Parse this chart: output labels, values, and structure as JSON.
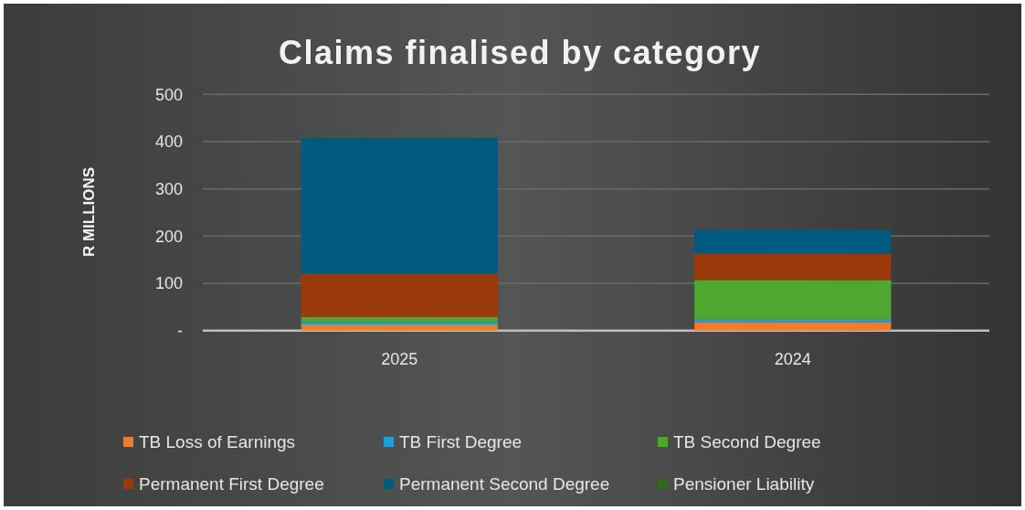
{
  "chart_data": {
    "type": "bar",
    "title": "Claims finalised  by category",
    "ylabel": "R MILLIONS",
    "categories": [
      "2025",
      "2024"
    ],
    "stacked": true,
    "ylim": [
      0,
      500
    ],
    "yticks": [
      {
        "value": 0,
        "label": "-"
      },
      100,
      200,
      300,
      400,
      500
    ],
    "grid": "y",
    "legend": "bottom",
    "series": [
      {
        "name": "TB Loss of Earnings",
        "color": "#ed7d31",
        "values": [
          13,
          18
        ]
      },
      {
        "name": "TB First Degree",
        "color": "#1ca0d8",
        "values": [
          5,
          7
        ]
      },
      {
        "name": "TB Second Degree",
        "color": "#4ea72e",
        "values": [
          11,
          82
        ]
      },
      {
        "name": "Permanent First Degree",
        "color": "#9a3a0a",
        "values": [
          92,
          56
        ]
      },
      {
        "name": "Permanent Second Degree",
        "color": "#005a80",
        "values": [
          287,
          50
        ]
      },
      {
        "name": "Pensioner Liability",
        "color": "#2e6b1f",
        "values": [
          1,
          0
        ]
      }
    ]
  }
}
